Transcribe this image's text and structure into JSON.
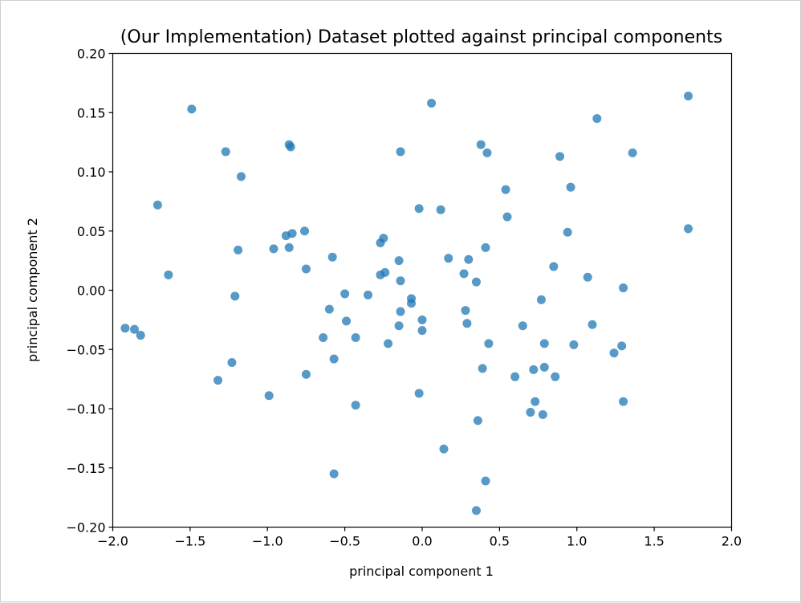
{
  "chart_data": {
    "type": "scatter",
    "title": "(Our Implementation) Dataset plotted against principal components",
    "xlabel": "principal component 1",
    "ylabel": "principal component 2",
    "xlim": [
      -2.0,
      2.0
    ],
    "ylim": [
      -0.2,
      0.2
    ],
    "grid": false,
    "legend": "none",
    "marker_color": "#1f77b4",
    "xticks": [
      "−2.0",
      "−1.5",
      "−1.0",
      "−0.5",
      "0.0",
      "0.5",
      "1.0",
      "1.5",
      "2.0"
    ],
    "xtick_values": [
      -2.0,
      -1.5,
      -1.0,
      -0.5,
      0.0,
      0.5,
      1.0,
      1.5,
      2.0
    ],
    "yticks": [
      "−0.20",
      "−0.15",
      "−0.10",
      "−0.05",
      "0.00",
      "0.05",
      "0.10",
      "0.15",
      "0.20"
    ],
    "ytick_values": [
      -0.2,
      -0.15,
      -0.1,
      -0.05,
      0.0,
      0.05,
      0.1,
      0.15,
      0.2
    ],
    "series": [
      {
        "x": [
          -1.92,
          -1.86,
          -1.82,
          -1.71,
          -1.64,
          -1.49,
          -1.32,
          -1.27,
          -1.23,
          -1.21,
          -1.19,
          -1.17,
          -0.99,
          -0.96,
          -0.88,
          -0.86,
          -0.86,
          -0.85,
          -0.84,
          -0.76,
          -0.75,
          -0.75,
          -0.64,
          -0.6,
          -0.58,
          -0.57,
          -0.57,
          -0.5,
          -0.49,
          -0.43,
          -0.43,
          -0.35,
          -0.27,
          -0.27,
          -0.25,
          -0.24,
          -0.22,
          -0.15,
          -0.15,
          -0.14,
          -0.14,
          -0.14,
          -0.07,
          -0.07,
          -0.02,
          -0.02,
          0.0,
          0.0,
          0.06,
          0.12,
          0.14,
          0.17,
          0.27,
          0.28,
          0.29,
          0.3,
          0.35,
          0.35,
          0.36,
          0.38,
          0.39,
          0.41,
          0.41,
          0.42,
          0.43,
          0.54,
          0.55,
          0.6,
          0.65,
          0.7,
          0.72,
          0.73,
          0.77,
          0.78,
          0.79,
          0.79,
          0.85,
          0.86,
          0.89,
          0.94,
          0.96,
          0.98,
          1.07,
          1.1,
          1.13,
          1.24,
          1.29,
          1.3,
          1.3,
          1.36,
          1.72,
          1.72
        ],
        "y": [
          -0.032,
          -0.033,
          -0.038,
          0.072,
          0.013,
          0.153,
          -0.076,
          0.117,
          -0.061,
          -0.005,
          0.034,
          0.096,
          -0.089,
          0.035,
          0.046,
          0.123,
          0.036,
          0.121,
          0.048,
          0.05,
          0.018,
          -0.071,
          -0.04,
          -0.016,
          0.028,
          -0.155,
          -0.058,
          -0.003,
          -0.026,
          -0.04,
          -0.097,
          -0.004,
          0.013,
          0.04,
          0.044,
          0.015,
          -0.045,
          -0.03,
          0.025,
          0.008,
          -0.018,
          0.117,
          -0.011,
          -0.007,
          -0.087,
          0.069,
          -0.025,
          -0.034,
          0.158,
          0.068,
          -0.134,
          0.027,
          0.014,
          -0.017,
          -0.028,
          0.026,
          0.007,
          -0.186,
          -0.11,
          0.123,
          -0.066,
          -0.161,
          0.036,
          0.116,
          -0.045,
          0.085,
          0.062,
          -0.073,
          -0.03,
          -0.103,
          -0.067,
          -0.094,
          -0.008,
          -0.105,
          -0.065,
          -0.045,
          0.02,
          -0.073,
          0.113,
          0.049,
          0.087,
          -0.046,
          0.011,
          -0.029,
          0.145,
          -0.053,
          -0.047,
          -0.094,
          0.002,
          0.116,
          0.164,
          0.052
        ]
      }
    ]
  }
}
